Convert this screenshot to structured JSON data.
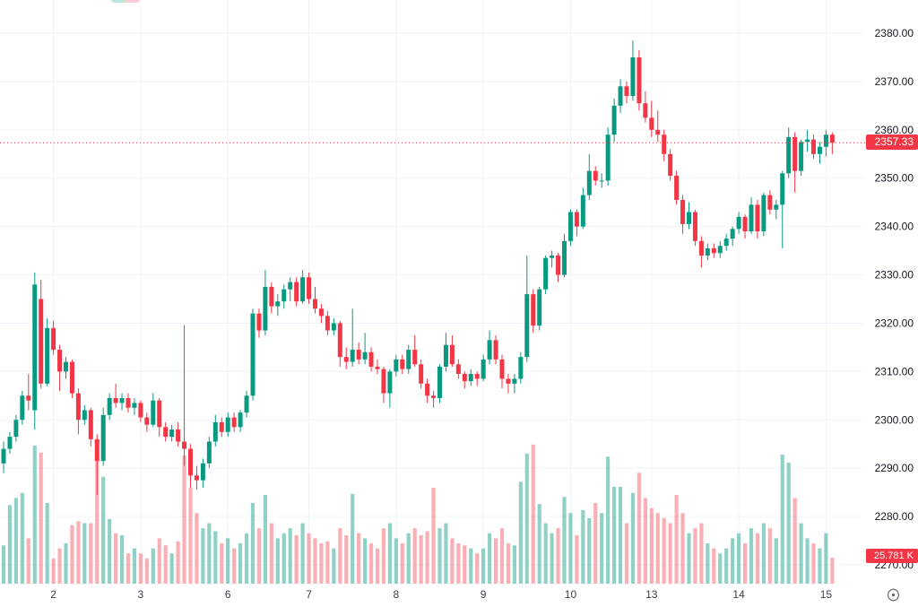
{
  "price_scale": {
    "labels": [
      "2380.00",
      "2370.00",
      "2360.00",
      "2350.00",
      "2340.00",
      "2330.00",
      "2320.00",
      "2310.00",
      "2300.00",
      "2290.00",
      "2280.00",
      "2270.00"
    ],
    "values": [
      2380,
      2370,
      2360,
      2350,
      2340,
      2330,
      2320,
      2310,
      2300,
      2290,
      2280,
      2270
    ],
    "last_price_label": "2357.33",
    "last_volume_label": "25.781 K"
  },
  "time_scale": {
    "ticks": [
      {
        "candle_index": 8,
        "label": "2"
      },
      {
        "candle_index": 22,
        "label": "3"
      },
      {
        "candle_index": 36,
        "label": "6"
      },
      {
        "candle_index": 49,
        "label": "7"
      },
      {
        "candle_index": 63,
        "label": "8"
      },
      {
        "candle_index": 77,
        "label": "9"
      },
      {
        "candle_index": 91,
        "label": "10"
      },
      {
        "candle_index": 104,
        "label": "13"
      },
      {
        "candle_index": 118,
        "label": "14"
      },
      {
        "candle_index": 132,
        "label": "15"
      }
    ]
  },
  "colors": {
    "up": "#089981",
    "down": "#f23645",
    "vol_up": "rgba(8,153,129,0.45)",
    "vol_down": "rgba(242,54,69,0.40)",
    "grid": "#f0f3fa",
    "axis_text": "#131722",
    "time_text": "#3c4150",
    "price_line": "#f23645",
    "badge_bg": "#f23645",
    "icon": "#6a6d78"
  },
  "chart_data": {
    "type": "candlestick_with_volume",
    "title": "",
    "price_axis_range": [
      2270,
      2380
    ],
    "price_axis_step": 10,
    "grid": true,
    "last_price": 2357.33,
    "last_price_line_style": "dotted",
    "last_volume_k": 25.781,
    "time_labels": [
      "2",
      "3",
      "6",
      "7",
      "8",
      "9",
      "10",
      "13",
      "14",
      "15"
    ],
    "candles": [
      [
        2291,
        2295.5,
        2289,
        2294
      ],
      [
        2294,
        2297.5,
        2293,
        2296.5
      ],
      [
        2296.5,
        2301,
        2295.5,
        2300
      ],
      [
        2300,
        2306,
        2299,
        2305
      ],
      [
        2305,
        2309.5,
        2302,
        2304
      ],
      [
        2302,
        2330.5,
        2298,
        2328
      ],
      [
        2325,
        2329,
        2306.5,
        2307.5
      ],
      [
        2307.5,
        2321,
        2307,
        2319
      ],
      [
        2319,
        2320.5,
        2313.5,
        2314.5
      ],
      [
        2314.5,
        2315.5,
        2306,
        2310
      ],
      [
        2310,
        2313,
        2308.5,
        2312
      ],
      [
        2312,
        2312.5,
        2304.5,
        2305.5
      ],
      [
        2305.5,
        2306.5,
        2297,
        2300
      ],
      [
        2300,
        2303,
        2299,
        2302
      ],
      [
        2302,
        2302.5,
        2294.5,
        2296
      ],
      [
        2296,
        2297,
        2284.5,
        2291.5
      ],
      [
        2291.5,
        2302.5,
        2290.5,
        2301
      ],
      [
        2301,
        2305.5,
        2300,
        2304.5
      ],
      [
        2304.5,
        2307.5,
        2302.5,
        2303.5
      ],
      [
        2303.5,
        2305.5,
        2302,
        2304.5
      ],
      [
        2304.5,
        2305.5,
        2301.5,
        2302.5
      ],
      [
        2302.5,
        2304.5,
        2301,
        2303.5
      ],
      [
        2303.5,
        2304,
        2299.5,
        2300.5
      ],
      [
        2300.5,
        2301.5,
        2297.5,
        2299
      ],
      [
        2299,
        2305.5,
        2298.5,
        2304
      ],
      [
        2304,
        2304.5,
        2296.5,
        2298.5
      ],
      [
        2298.5,
        2299.5,
        2295.5,
        2296.5
      ],
      [
        2296.5,
        2299,
        2295.5,
        2298
      ],
      [
        2298,
        2299.5,
        2294.5,
        2295.5
      ],
      [
        2295.5,
        2319.5,
        2290.5,
        2294
      ],
      [
        2294,
        2295,
        2286,
        2288.5
      ],
      [
        2288.5,
        2290.5,
        2285.5,
        2287.5
      ],
      [
        2287.5,
        2292,
        2286,
        2291
      ],
      [
        2291,
        2296.5,
        2290,
        2295.5
      ],
      [
        2295.5,
        2301,
        2294.5,
        2299.5
      ],
      [
        2299.5,
        2300.5,
        2296.5,
        2297.5
      ],
      [
        2297.5,
        2301.5,
        2296.5,
        2300.5
      ],
      [
        2300.5,
        2301.5,
        2297.5,
        2298.5
      ],
      [
        2298.5,
        2302,
        2297.5,
        2301.5
      ],
      [
        2301.5,
        2306,
        2300.5,
        2305
      ],
      [
        2305,
        2323,
        2304,
        2322
      ],
      [
        2322,
        2323,
        2317,
        2318.5
      ],
      [
        2318.5,
        2331,
        2317.5,
        2327.5
      ],
      [
        2327.5,
        2328.5,
        2322,
        2323.5
      ],
      [
        2323.5,
        2326,
        2321.5,
        2324.5
      ],
      [
        2324.5,
        2328,
        2323,
        2327
      ],
      [
        2327,
        2329.5,
        2324.5,
        2328.5
      ],
      [
        2328.5,
        2329.5,
        2323.5,
        2324.5
      ],
      [
        2324.5,
        2331,
        2324,
        2329.5
      ],
      [
        2329.5,
        2330.5,
        2324,
        2325
      ],
      [
        2325,
        2327.5,
        2322,
        2323
      ],
      [
        2323,
        2324,
        2320,
        2321.5
      ],
      [
        2321.5,
        2322.5,
        2317.5,
        2318.5
      ],
      [
        2318.5,
        2321,
        2317.5,
        2320
      ],
      [
        2320,
        2320.5,
        2311,
        2313
      ],
      [
        2313,
        2315,
        2310.5,
        2312
      ],
      [
        2312,
        2323,
        2311,
        2314.5
      ],
      [
        2314.5,
        2316,
        2311.5,
        2312.5
      ],
      [
        2312.5,
        2318,
        2311.5,
        2314
      ],
      [
        2314,
        2315,
        2310,
        2311
      ],
      [
        2311,
        2312.5,
        2309.5,
        2310.5
      ],
      [
        2310.5,
        2311,
        2303.5,
        2305.5
      ],
      [
        2305.5,
        2310.5,
        2302.5,
        2310
      ],
      [
        2310,
        2313.5,
        2309,
        2312.5
      ],
      [
        2312.5,
        2313.5,
        2309.5,
        2310.5
      ],
      [
        2310.5,
        2315.5,
        2309.5,
        2314.5
      ],
      [
        2314.5,
        2317.5,
        2311,
        2311.5
      ],
      [
        2311.5,
        2312.5,
        2306.5,
        2307.5
      ],
      [
        2307.5,
        2308.5,
        2303.5,
        2305
      ],
      [
        2305,
        2306,
        2302.5,
        2304.5
      ],
      [
        2304.5,
        2311.5,
        2303.5,
        2311
      ],
      [
        2311,
        2318,
        2310,
        2315.5
      ],
      [
        2315.5,
        2317.5,
        2311,
        2311.5
      ],
      [
        2311.5,
        2312.5,
        2308.5,
        2309.5
      ],
      [
        2309.5,
        2310,
        2306.5,
        2308
      ],
      [
        2308,
        2310.5,
        2307,
        2309.5
      ],
      [
        2309.5,
        2310,
        2307,
        2308.5
      ],
      [
        2308.5,
        2313.5,
        2308,
        2312.5
      ],
      [
        2312.5,
        2318.5,
        2311.5,
        2316.5
      ],
      [
        2316.5,
        2317.5,
        2311.5,
        2312.5
      ],
      [
        2312.5,
        2313.5,
        2306.5,
        2308.5
      ],
      [
        2308.5,
        2309.5,
        2305.5,
        2307.5
      ],
      [
        2307.5,
        2309.5,
        2305.5,
        2308.5
      ],
      [
        2308.5,
        2314,
        2307.5,
        2313
      ],
      [
        2313,
        2334,
        2312,
        2326
      ],
      [
        2326,
        2327,
        2318,
        2319.5
      ],
      [
        2319.5,
        2327.5,
        2318.5,
        2327
      ],
      [
        2327,
        2334,
        2326,
        2333.5
      ],
      [
        2333.5,
        2335,
        2331.5,
        2334
      ],
      [
        2334,
        2334.5,
        2328.5,
        2330
      ],
      [
        2330,
        2338.5,
        2329.5,
        2337
      ],
      [
        2337,
        2343.5,
        2336,
        2343
      ],
      [
        2343,
        2343.5,
        2338,
        2340
      ],
      [
        2340,
        2348,
        2339.5,
        2346.5
      ],
      [
        2346.5,
        2355,
        2345.5,
        2351.5
      ],
      [
        2351.5,
        2352.5,
        2348.5,
        2349.5
      ],
      [
        2349.5,
        2351,
        2348,
        2349.5
      ],
      [
        2349.5,
        2360.5,
        2348.5,
        2359
      ],
      [
        2359,
        2366.5,
        2357.5,
        2365
      ],
      [
        2365,
        2370.5,
        2363.5,
        2369
      ],
      [
        2369,
        2370,
        2365.5,
        2367
      ],
      [
        2367,
        2378.5,
        2366,
        2375
      ],
      [
        2375,
        2376.5,
        2364,
        2365.5
      ],
      [
        2365.5,
        2368,
        2361.5,
        2362.5
      ],
      [
        2362.5,
        2366,
        2358.5,
        2360
      ],
      [
        2360,
        2364,
        2357.5,
        2359
      ],
      [
        2359,
        2360,
        2353.5,
        2355
      ],
      [
        2355,
        2356,
        2349.5,
        2350.5
      ],
      [
        2350.5,
        2351.5,
        2344.5,
        2345.5
      ],
      [
        2345.5,
        2346.5,
        2338.5,
        2340.5
      ],
      [
        2340.5,
        2345,
        2339.5,
        2343
      ],
      [
        2343,
        2343.5,
        2336,
        2337
      ],
      [
        2337,
        2338,
        2331.5,
        2334
      ],
      [
        2334,
        2336.5,
        2333,
        2335.5
      ],
      [
        2335.5,
        2336.5,
        2333.5,
        2334.5
      ],
      [
        2334.5,
        2337,
        2333.5,
        2336
      ],
      [
        2336,
        2338.5,
        2335,
        2337.5
      ],
      [
        2337.5,
        2340,
        2336,
        2339.5
      ],
      [
        2339.5,
        2343,
        2338.5,
        2342
      ],
      [
        2342,
        2342.5,
        2337.5,
        2339
      ],
      [
        2339,
        2346,
        2338.5,
        2344.5
      ],
      [
        2344.5,
        2345.5,
        2337.5,
        2339
      ],
      [
        2339,
        2347,
        2338,
        2346.5
      ],
      [
        2346.5,
        2347.5,
        2342.5,
        2343.5
      ],
      [
        2343.5,
        2345.5,
        2341.5,
        2344.5
      ],
      [
        2344.5,
        2351.5,
        2335.5,
        2351
      ],
      [
        2351,
        2360.5,
        2350,
        2358.5
      ],
      [
        2358.5,
        2359.5,
        2347,
        2351.5
      ],
      [
        2351.5,
        2358,
        2350.5,
        2357.5
      ],
      [
        2357.5,
        2360,
        2355.5,
        2358
      ],
      [
        2358,
        2359,
        2354,
        2355
      ],
      [
        2355,
        2357.5,
        2353,
        2356.5
      ],
      [
        2356.5,
        2360,
        2354.5,
        2359
      ],
      [
        2359,
        2359.5,
        2355,
        2357.33
      ]
    ],
    "volumes_k": [
      38,
      78,
      85,
      90,
      45,
      137,
      130,
      80,
      25,
      35,
      40,
      58,
      62,
      60,
      60,
      131,
      106,
      64,
      50,
      48,
      30,
      35,
      30,
      25,
      35,
      45,
      38,
      30,
      42,
      127,
      95,
      70,
      55,
      60,
      52,
      40,
      45,
      35,
      40,
      50,
      80,
      55,
      88,
      60,
      45,
      50,
      55,
      48,
      60,
      50,
      45,
      40,
      42,
      35,
      55,
      48,
      89,
      50,
      45,
      40,
      35,
      55,
      60,
      45,
      40,
      50,
      55,
      48,
      52,
      95,
      55,
      60,
      45,
      40,
      38,
      35,
      30,
      35,
      50,
      45,
      55,
      40,
      38,
      101,
      129,
      138,
      79,
      60,
      50,
      55,
      86,
      70,
      48,
      73,
      65,
      80,
      70,
      126,
      96,
      96,
      60,
      90,
      110,
      85,
      75,
      70,
      65,
      60,
      88,
      70,
      50,
      55,
      60,
      40,
      35,
      30,
      35,
      45,
      50,
      40,
      55,
      50,
      60,
      55,
      45,
      128,
      120,
      85,
      60,
      45,
      40,
      35,
      50,
      25.781
    ]
  }
}
